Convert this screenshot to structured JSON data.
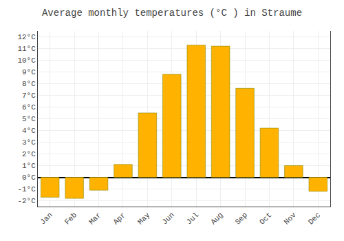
{
  "chart_data": {
    "type": "bar",
    "title": "Average monthly temperatures (°C ) in Straume",
    "categories": [
      "Jan",
      "Feb",
      "Mar",
      "Apr",
      "May",
      "Jun",
      "Jul",
      "Aug",
      "Sep",
      "Oct",
      "Nov",
      "Dec"
    ],
    "values": [
      -1.7,
      -1.8,
      -1.1,
      1.1,
      5.5,
      8.8,
      11.3,
      11.2,
      7.6,
      4.2,
      1.0,
      -1.2
    ],
    "color": "#FFB300",
    "ylim": [
      -2.5,
      12.5
    ],
    "yticks": [
      {
        "value": -2,
        "label": "-2°C"
      },
      {
        "value": -1,
        "label": "-1°C"
      },
      {
        "value": 0,
        "label": "0°C"
      },
      {
        "value": 1,
        "label": "1°C"
      },
      {
        "value": 2,
        "label": "2°C"
      },
      {
        "value": 3,
        "label": "3°C"
      },
      {
        "value": 4,
        "label": "4°C"
      },
      {
        "value": 5,
        "label": "5°C"
      },
      {
        "value": 6,
        "label": "6°C"
      },
      {
        "value": 7,
        "label": "7°C"
      },
      {
        "value": 8,
        "label": "8°C"
      },
      {
        "value": 9,
        "label": "9°C"
      },
      {
        "value": 10,
        "label": "10°C"
      },
      {
        "value": 11,
        "label": "11°C"
      },
      {
        "value": 12,
        "label": "12°C"
      }
    ],
    "grid": true
  }
}
